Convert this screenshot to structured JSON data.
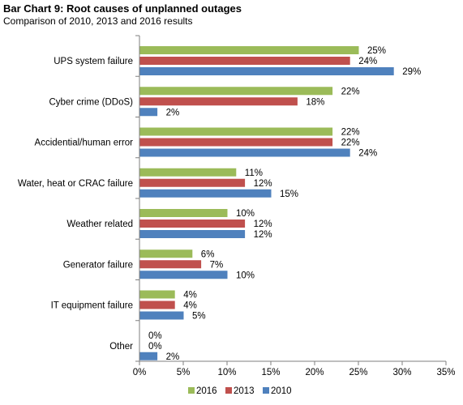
{
  "chart_data": {
    "type": "bar",
    "orientation": "horizontal",
    "title": "Bar Chart 9: Root causes of unplanned outages",
    "subtitle": "Comparison of 2010, 2013 and 2016 results",
    "categories": [
      "UPS system failure",
      "Cyber crime (DDoS)",
      "Accidential/human error",
      "Water, heat or CRAC failure",
      "Weather related",
      "Generator failure",
      "IT equipment failure",
      "Other"
    ],
    "series": [
      {
        "name": "2016",
        "color": "#9bbb59",
        "values": [
          25,
          22,
          22,
          11,
          10,
          6,
          4,
          0
        ]
      },
      {
        "name": "2013",
        "color": "#c0504d",
        "values": [
          24,
          18,
          22,
          12,
          12,
          7,
          4,
          0
        ]
      },
      {
        "name": "2010",
        "color": "#4f81bd",
        "values": [
          29,
          2,
          24,
          15,
          12,
          10,
          5,
          2
        ]
      }
    ],
    "value_suffix": "%",
    "xlim": [
      0,
      35
    ],
    "xticks": [
      0,
      5,
      10,
      15,
      20,
      25,
      30,
      35
    ],
    "xtick_labels": [
      "0%",
      "5%",
      "10%",
      "15%",
      "20%",
      "25%",
      "30%",
      "35%"
    ],
    "grid": false,
    "legend_position": "bottom"
  }
}
